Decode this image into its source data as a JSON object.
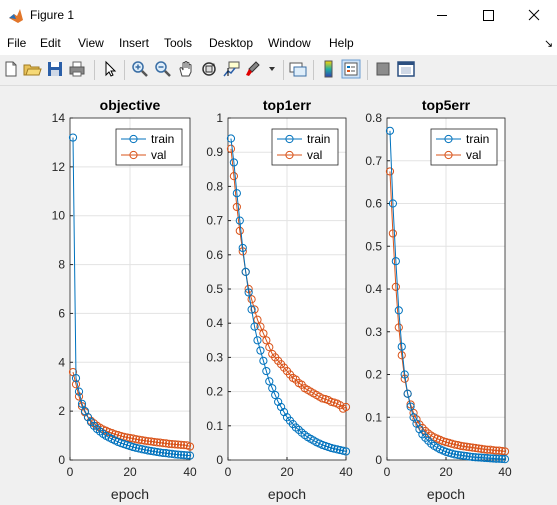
{
  "window": {
    "title": "Figure 1"
  },
  "menu": [
    "File",
    "Edit",
    "View",
    "Insert",
    "Tools",
    "Desktop",
    "Window",
    "Help"
  ],
  "toolbar": {
    "icons": [
      "new-figure-icon",
      "open-file-icon",
      "save-icon",
      "print-icon",
      "edit-plot-arrow-icon",
      "zoom-in-icon",
      "zoom-out-icon",
      "pan-icon",
      "rotate-3d-icon",
      "data-cursor-icon",
      "brush-icon",
      "link-plot-icon",
      "colorbar-icon",
      "legend-icon",
      "hide-plot-tools-icon",
      "show-plot-tools-icon"
    ]
  },
  "colors": {
    "train": "#0072bd",
    "val": "#d95319"
  },
  "chart_data": [
    {
      "type": "line",
      "title": "objective",
      "xlabel": "epoch",
      "xlim": [
        0,
        40
      ],
      "ylim": [
        0,
        14
      ],
      "xticks": [
        0,
        20,
        40
      ],
      "yticks": [
        0,
        2,
        4,
        6,
        8,
        10,
        12,
        14
      ],
      "grid": true,
      "legend": "top-right",
      "x": [
        1,
        2,
        3,
        4,
        5,
        6,
        7,
        8,
        9,
        10,
        11,
        12,
        13,
        14,
        15,
        16,
        17,
        18,
        19,
        20,
        21,
        22,
        23,
        24,
        25,
        26,
        27,
        28,
        29,
        30,
        31,
        32,
        33,
        34,
        35,
        36,
        37,
        38,
        39,
        40
      ],
      "series": [
        {
          "name": "train",
          "values": [
            13.2,
            3.35,
            2.8,
            2.3,
            2.0,
            1.75,
            1.55,
            1.4,
            1.27,
            1.17,
            1.07,
            0.99,
            0.92,
            0.86,
            0.8,
            0.74,
            0.69,
            0.65,
            0.61,
            0.57,
            0.53,
            0.5,
            0.47,
            0.44,
            0.42,
            0.39,
            0.37,
            0.35,
            0.33,
            0.31,
            0.29,
            0.28,
            0.26,
            0.25,
            0.23,
            0.22,
            0.21,
            0.2,
            0.19,
            0.18
          ]
        },
        {
          "name": "val",
          "values": [
            3.6,
            3.1,
            2.6,
            2.2,
            1.95,
            1.75,
            1.6,
            1.5,
            1.4,
            1.32,
            1.25,
            1.2,
            1.14,
            1.1,
            1.05,
            1.02,
            0.98,
            0.95,
            0.92,
            0.9,
            0.88,
            0.85,
            0.83,
            0.81,
            0.79,
            0.77,
            0.76,
            0.74,
            0.72,
            0.71,
            0.69,
            0.68,
            0.66,
            0.65,
            0.64,
            0.63,
            0.62,
            0.61,
            0.6,
            0.55
          ]
        }
      ]
    },
    {
      "type": "line",
      "title": "top1err",
      "xlabel": "epoch",
      "xlim": [
        0,
        40
      ],
      "ylim": [
        0,
        1
      ],
      "xticks": [
        0,
        20,
        40
      ],
      "yticks": [
        0,
        0.1,
        0.2,
        0.3,
        0.4,
        0.5,
        0.6,
        0.7,
        0.8,
        0.9,
        1
      ],
      "grid": true,
      "legend": "top-right",
      "x": [
        1,
        2,
        3,
        4,
        5,
        6,
        7,
        8,
        9,
        10,
        11,
        12,
        13,
        14,
        15,
        16,
        17,
        18,
        19,
        20,
        21,
        22,
        23,
        24,
        25,
        26,
        27,
        28,
        29,
        30,
        31,
        32,
        33,
        34,
        35,
        36,
        37,
        38,
        39,
        40
      ],
      "series": [
        {
          "name": "train",
          "values": [
            0.94,
            0.87,
            0.78,
            0.7,
            0.62,
            0.55,
            0.49,
            0.44,
            0.39,
            0.35,
            0.32,
            0.29,
            0.26,
            0.23,
            0.21,
            0.19,
            0.17,
            0.155,
            0.14,
            0.125,
            0.115,
            0.105,
            0.095,
            0.088,
            0.08,
            0.073,
            0.067,
            0.062,
            0.057,
            0.052,
            0.048,
            0.044,
            0.041,
            0.038,
            0.035,
            0.033,
            0.031,
            0.029,
            0.027,
            0.025
          ]
        },
        {
          "name": "val",
          "values": [
            0.91,
            0.83,
            0.74,
            0.67,
            0.61,
            0.55,
            0.5,
            0.47,
            0.44,
            0.41,
            0.39,
            0.37,
            0.35,
            0.33,
            0.31,
            0.3,
            0.29,
            0.28,
            0.27,
            0.26,
            0.25,
            0.24,
            0.235,
            0.225,
            0.22,
            0.21,
            0.205,
            0.2,
            0.195,
            0.19,
            0.185,
            0.18,
            0.178,
            0.175,
            0.17,
            0.168,
            0.165,
            0.16,
            0.15,
            0.155
          ]
        }
      ]
    },
    {
      "type": "line",
      "title": "top5err",
      "xlabel": "epoch",
      "xlim": [
        0,
        40
      ],
      "ylim": [
        0,
        0.8
      ],
      "xticks": [
        0,
        20,
        40
      ],
      "yticks": [
        0,
        0.1,
        0.2,
        0.3,
        0.4,
        0.5,
        0.6,
        0.7,
        0.8
      ],
      "grid": true,
      "legend": "top-right",
      "x": [
        1,
        2,
        3,
        4,
        5,
        6,
        7,
        8,
        9,
        10,
        11,
        12,
        13,
        14,
        15,
        16,
        17,
        18,
        19,
        20,
        21,
        22,
        23,
        24,
        25,
        26,
        27,
        28,
        29,
        30,
        31,
        32,
        33,
        34,
        35,
        36,
        37,
        38,
        39,
        40
      ],
      "series": [
        {
          "name": "train",
          "values": [
            0.77,
            0.6,
            0.465,
            0.35,
            0.265,
            0.2,
            0.155,
            0.125,
            0.1,
            0.085,
            0.072,
            0.06,
            0.052,
            0.045,
            0.038,
            0.033,
            0.029,
            0.025,
            0.022,
            0.019,
            0.017,
            0.015,
            0.013,
            0.012,
            0.011,
            0.01,
            0.009,
            0.008,
            0.007,
            0.0065,
            0.006,
            0.0055,
            0.005,
            0.0045,
            0.004,
            0.0035,
            0.003,
            0.003,
            0.0025,
            0.002
          ]
        },
        {
          "name": "val",
          "values": [
            0.675,
            0.53,
            0.405,
            0.31,
            0.245,
            0.19,
            0.155,
            0.13,
            0.11,
            0.095,
            0.083,
            0.075,
            0.068,
            0.062,
            0.057,
            0.053,
            0.05,
            0.047,
            0.044,
            0.042,
            0.04,
            0.038,
            0.036,
            0.035,
            0.033,
            0.032,
            0.031,
            0.03,
            0.029,
            0.028,
            0.027,
            0.026,
            0.025,
            0.024,
            0.024,
            0.023,
            0.022,
            0.022,
            0.021,
            0.02
          ]
        }
      ]
    }
  ]
}
